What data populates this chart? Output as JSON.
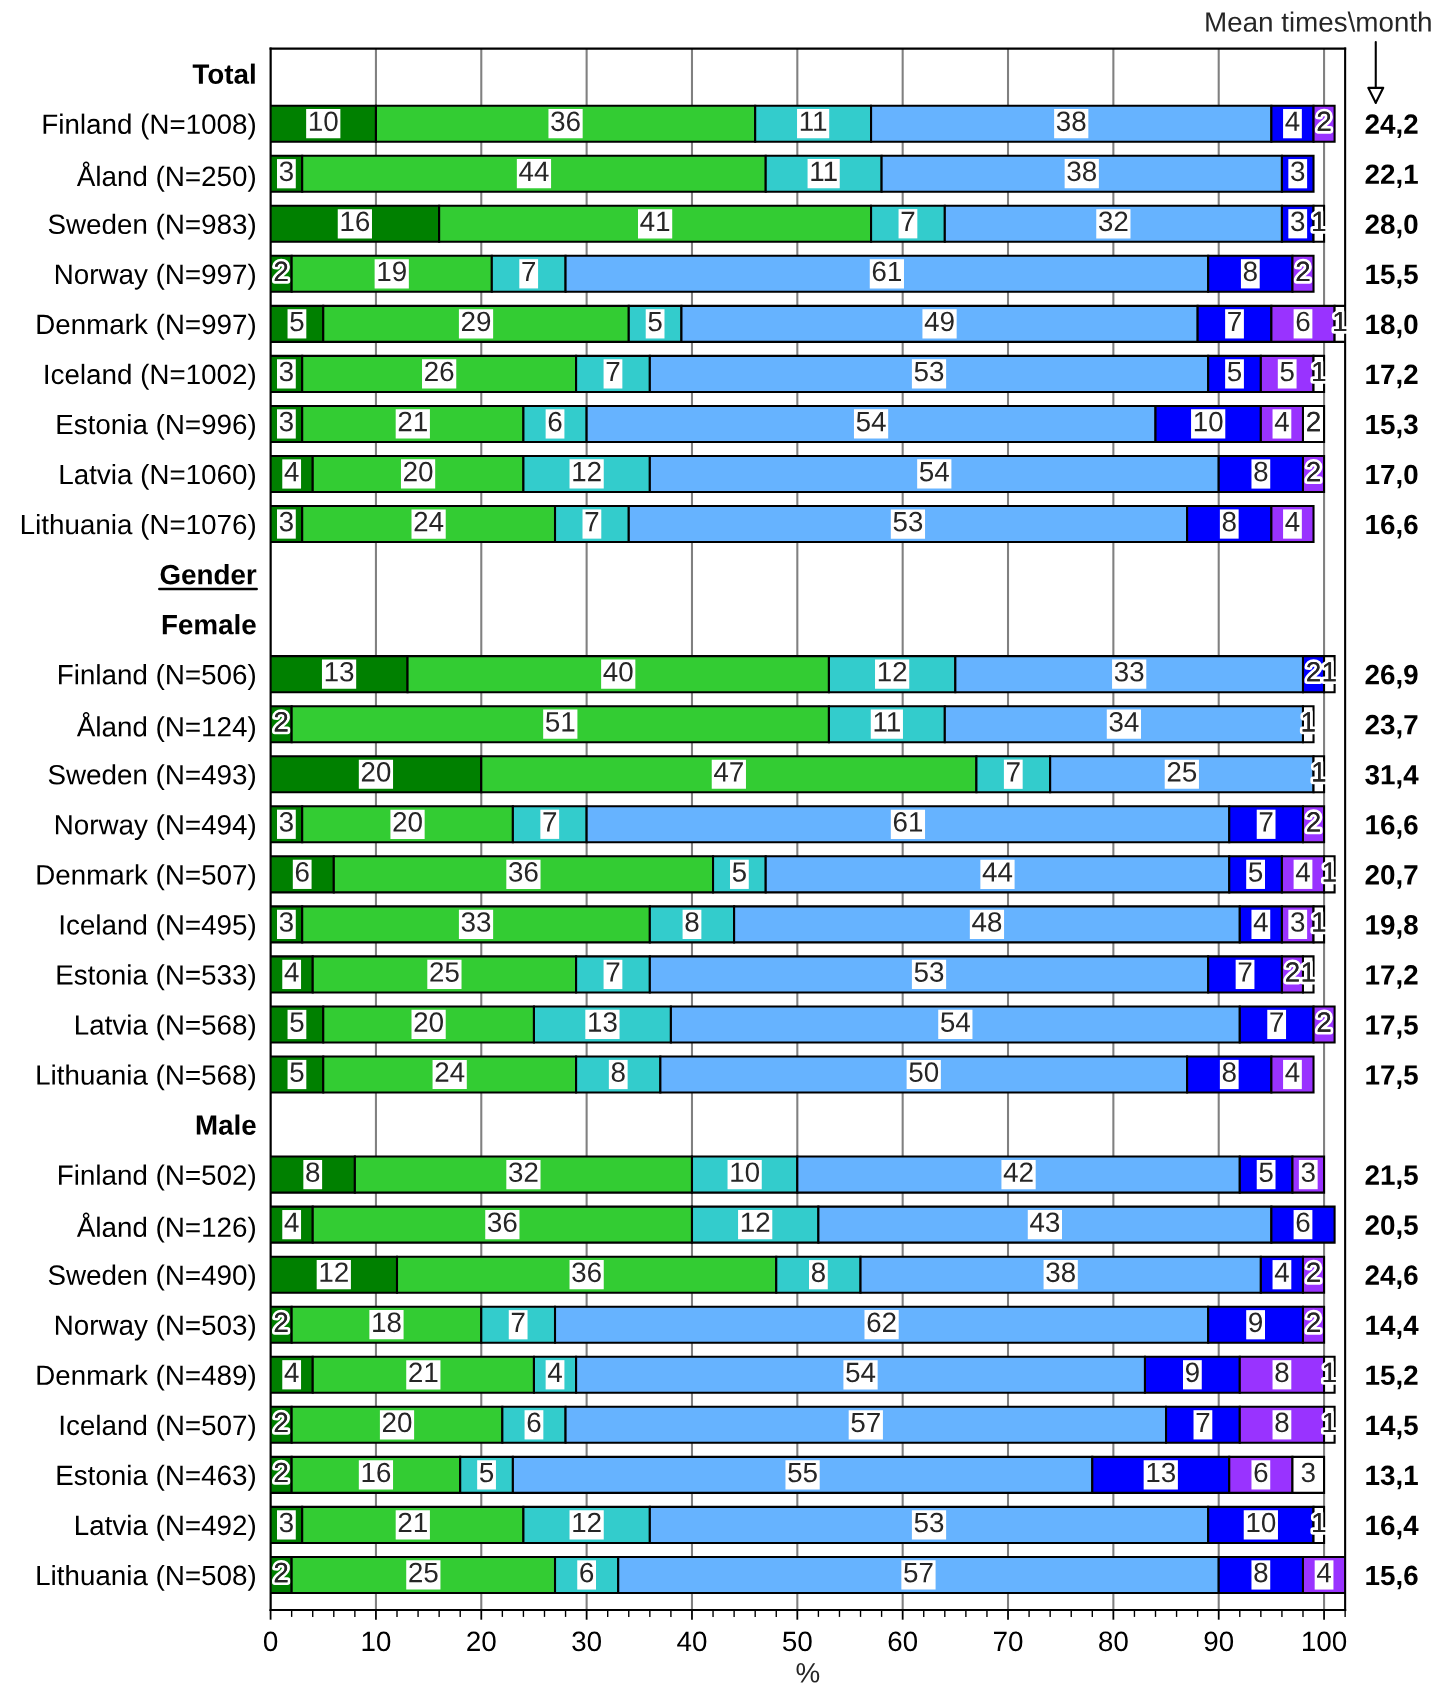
{
  "chart_data": {
    "type": "bar",
    "orientation": "horizontal",
    "stacked": true,
    "data_labels": true,
    "grid": "x",
    "xlabel": "%",
    "xlim": [
      0,
      102
    ],
    "xticks": [
      0,
      10,
      20,
      30,
      40,
      50,
      60,
      70,
      80,
      90,
      100
    ],
    "y2label": "Mean times\\month",
    "categories": [
      "Total",
      "Finland (N=1008)",
      "Åland (N=250)",
      "Sweden (N=983)",
      "Norway (N=997)",
      "Denmark (N=997)",
      "Iceland (N=1002)",
      "Estonia (N=996)",
      "Latvia (N=1060)",
      "Lithuania (N=1076)",
      "Gender",
      "Female",
      "Finland (N=506)",
      "Åland (N=124)",
      "Sweden (N=493)",
      "Norway (N=494)",
      "Denmark (N=507)",
      "Iceland (N=495)",
      "Estonia (N=533)",
      "Latvia (N=568)",
      "Lithuania (N=568)",
      "Male",
      "Finland (N=502)",
      "Åland (N=126)",
      "Sweden (N=490)",
      "Norway (N=503)",
      "Denmark (N=489)",
      "Iceland (N=507)",
      "Estonia (N=463)",
      "Latvia (N=492)",
      "Lithuania (N=508)"
    ],
    "y2_categories": [
      null,
      "24,2",
      "22,1",
      "28,0",
      "15,5",
      "18,0",
      "17,2",
      "15,3",
      "17,0",
      "16,6",
      null,
      null,
      "26,9",
      "23,7",
      "31,4",
      "16,6",
      "20,7",
      "19,8",
      "17,2",
      "17,5",
      "17,5",
      null,
      "21,5",
      "20,5",
      "24,6",
      "14,4",
      "15,2",
      "14,5",
      "13,1",
      "16,4",
      "15,6"
    ],
    "series": [
      {
        "color": "#008000",
        "values": [
          null,
          10,
          3,
          16,
          2,
          5,
          3,
          3,
          4,
          3,
          null,
          null,
          13,
          2,
          20,
          3,
          6,
          3,
          4,
          5,
          5,
          null,
          8,
          4,
          12,
          2,
          4,
          2,
          2,
          3,
          2
        ]
      },
      {
        "color": "#33cc33",
        "values": [
          null,
          36,
          44,
          41,
          19,
          29,
          26,
          21,
          20,
          24,
          null,
          null,
          40,
          51,
          47,
          20,
          36,
          33,
          25,
          20,
          24,
          null,
          32,
          36,
          36,
          18,
          21,
          20,
          16,
          21,
          25
        ]
      },
      {
        "color": "#33cccc",
        "values": [
          null,
          11,
          11,
          7,
          7,
          5,
          7,
          6,
          12,
          7,
          null,
          null,
          12,
          11,
          7,
          7,
          5,
          8,
          7,
          13,
          8,
          null,
          10,
          12,
          8,
          7,
          4,
          6,
          5,
          12,
          6
        ]
      },
      {
        "color": "#66b3ff",
        "values": [
          null,
          38,
          38,
          32,
          61,
          49,
          53,
          54,
          54,
          53,
          null,
          null,
          33,
          34,
          25,
          61,
          44,
          48,
          53,
          54,
          50,
          null,
          42,
          43,
          38,
          62,
          54,
          57,
          55,
          53,
          57
        ]
      },
      {
        "color": "#0000ff",
        "values": [
          null,
          4,
          3,
          3,
          8,
          7,
          5,
          10,
          8,
          8,
          null,
          null,
          2,
          null,
          null,
          7,
          5,
          4,
          7,
          7,
          8,
          null,
          5,
          6,
          4,
          9,
          9,
          7,
          13,
          10,
          8
        ]
      },
      {
        "color": "#9933ff",
        "values": [
          null,
          2,
          null,
          null,
          2,
          6,
          5,
          4,
          2,
          4,
          null,
          null,
          null,
          null,
          null,
          2,
          4,
          3,
          2,
          2,
          4,
          null,
          3,
          null,
          2,
          2,
          8,
          8,
          6,
          null,
          4
        ]
      },
      {
        "color": "#ffffff",
        "values": [
          null,
          null,
          null,
          1,
          null,
          1,
          1,
          2,
          null,
          null,
          null,
          null,
          1,
          1,
          1,
          null,
          1,
          1,
          1,
          null,
          null,
          null,
          null,
          null,
          null,
          null,
          1,
          1,
          3,
          1,
          null
        ]
      }
    ]
  }
}
